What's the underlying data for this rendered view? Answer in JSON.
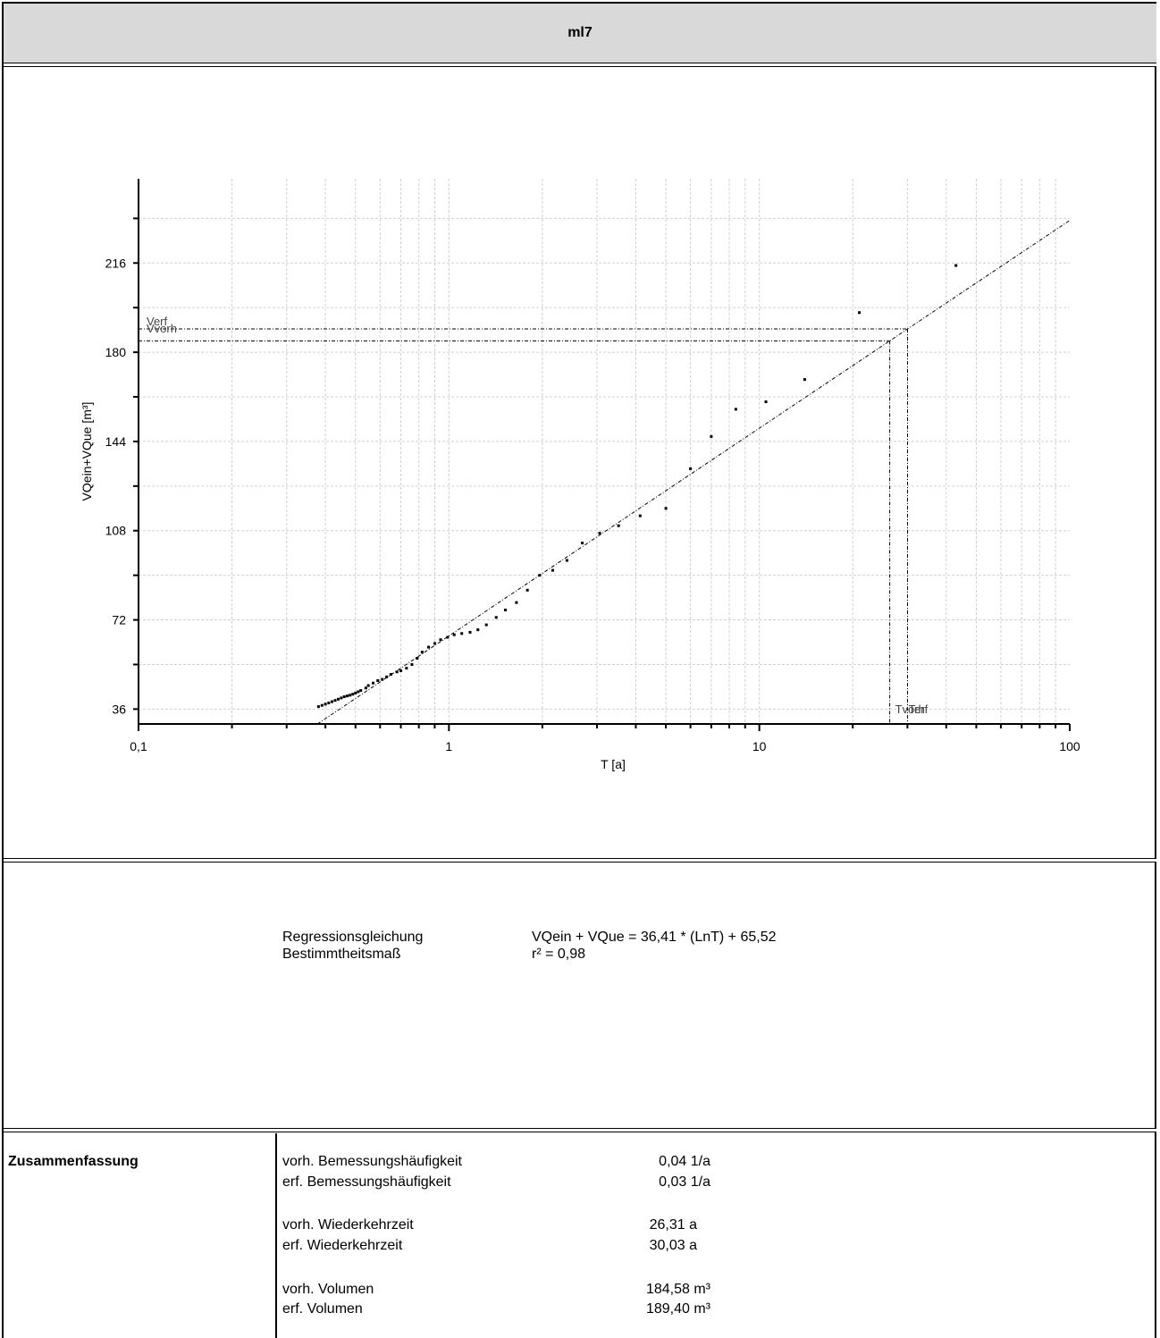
{
  "header": {
    "title": "ml7"
  },
  "chart_data": {
    "type": "scatter",
    "xlabel": "T [a]",
    "ylabel": "VQein+VQue [m³]",
    "x_scale": "log",
    "xlim": [
      0.1,
      100
    ],
    "ylim": [
      30,
      250
    ],
    "x_ticks": [
      "0,1",
      "1",
      "10",
      "100"
    ],
    "y_ticks": [
      "36",
      "72",
      "108",
      "144",
      "180",
      "216"
    ],
    "grid": true,
    "observed": {
      "x": [
        0.38,
        0.39,
        0.4,
        0.41,
        0.42,
        0.43,
        0.44,
        0.45,
        0.46,
        0.47,
        0.48,
        0.49,
        0.5,
        0.51,
        0.52,
        0.54,
        0.55,
        0.57,
        0.59,
        0.61,
        0.63,
        0.65,
        0.68,
        0.7,
        0.73,
        0.76,
        0.79,
        0.82,
        0.86,
        0.9,
        0.94,
        0.99,
        1.04,
        1.1,
        1.17,
        1.24,
        1.32,
        1.42,
        1.52,
        1.65,
        1.79,
        1.96,
        2.16,
        2.4,
        2.69,
        3.06,
        3.52,
        4.13,
        5.0,
        6.0,
        7.0,
        8.4,
        10.5,
        14.0,
        21.0,
        43.0
      ],
      "y": [
        37.0,
        37.5,
        38.0,
        38.5,
        39.0,
        39.5,
        40.0,
        40.5,
        41.0,
        41.3,
        41.6,
        42.0,
        42.5,
        43.0,
        43.5,
        44.5,
        45.5,
        46.5,
        47.5,
        48.0,
        49.0,
        50.0,
        51.0,
        51.5,
        52.5,
        54.0,
        56.5,
        59.0,
        61.0,
        62.5,
        64.0,
        65.0,
        66.0,
        66.5,
        67.0,
        68.0,
        70.0,
        73.0,
        76.0,
        79.0,
        84.0,
        90.0,
        92.0,
        96.0,
        103.0,
        107.0,
        110.0,
        114.0,
        117.0,
        133.0,
        146.0,
        157.0,
        160.0,
        169.0,
        196.0,
        215.0
      ]
    },
    "regression": {
      "a": 36.41,
      "b": 65.52
    },
    "markers": {
      "Vorh": 184.58,
      "Verf": 189.4,
      "Tvorh": 26.31,
      "Terf": 30.03,
      "label_Verf": "Verf",
      "label_Vvorh": "Vvorh",
      "label_Tvorh": "Tvorh",
      "label_Terf": "Terf"
    }
  },
  "regression_text": {
    "label1": "Regressionsgleichung",
    "value1": "VQein + VQue = 36,41 * (LnT) + 65,52",
    "label2": "Bestimmtheitsmaß",
    "value2": "r² = 0,98"
  },
  "summary": {
    "title": "Zusammenfassung",
    "rows": [
      {
        "label": "vorh. Bemessungshäufigkeit",
        "value": "0,04 1/a"
      },
      {
        "label": "erf. Bemessungshäufigkeit",
        "value": "0,03 1/a"
      },
      {
        "label": "vorh. Wiederkehrzeit",
        "value": "26,31 a"
      },
      {
        "label": "erf. Wiederkehrzeit",
        "value": "30,03 a"
      },
      {
        "label": "vorh. Volumen",
        "value": "184,58 m³"
      },
      {
        "label": "erf. Volumen",
        "value": "189,40 m³"
      }
    ]
  }
}
